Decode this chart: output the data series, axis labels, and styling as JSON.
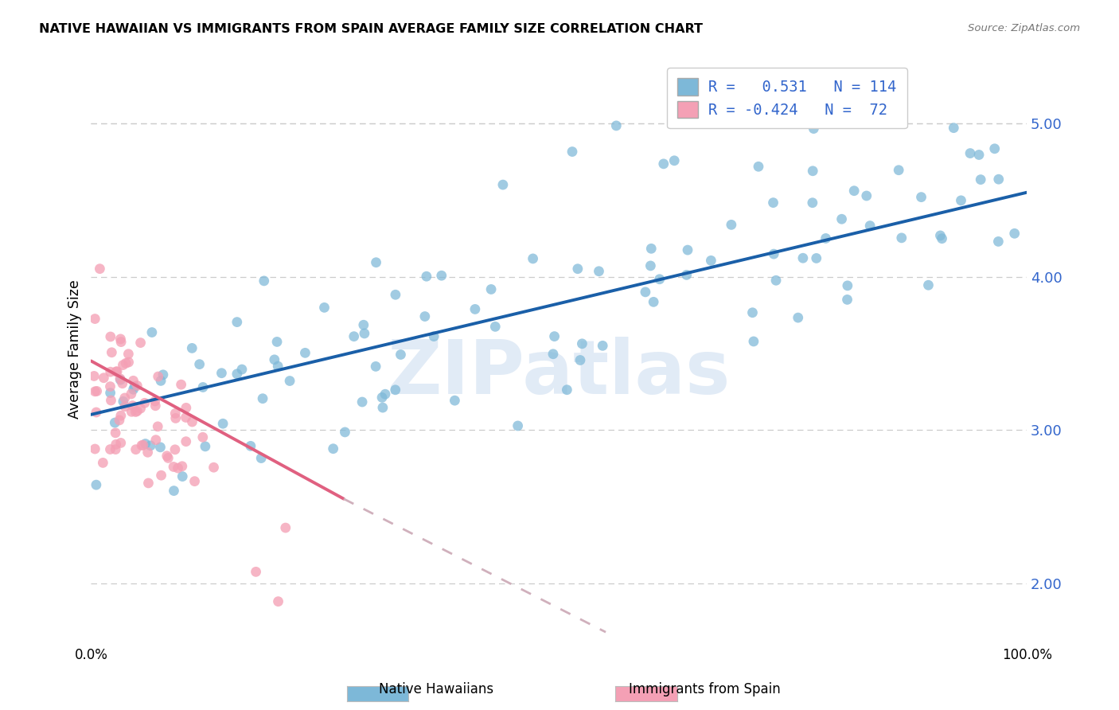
{
  "title": "NATIVE HAWAIIAN VS IMMIGRANTS FROM SPAIN AVERAGE FAMILY SIZE CORRELATION CHART",
  "source": "Source: ZipAtlas.com",
  "ylabel": "Average Family Size",
  "yticks": [
    2.0,
    3.0,
    4.0,
    5.0
  ],
  "xlim": [
    0.0,
    1.0
  ],
  "ylim": [
    1.6,
    5.45
  ],
  "blue_R": 0.531,
  "blue_N": 114,
  "pink_R": -0.424,
  "pink_N": 72,
  "blue_color": "#7db8d8",
  "pink_color": "#f4a0b5",
  "blue_line_color": "#1a5fa8",
  "pink_line_color": "#e06080",
  "pink_line_dashed_color": "#d0b0bc",
  "watermark": "ZIPatlas",
  "legend_label_blue": "Native Hawaiians",
  "legend_label_pink": "Immigrants from Spain",
  "blue_seed": 42,
  "pink_seed": 7,
  "blue_trend": [
    0.0,
    3.1,
    1.0,
    4.55
  ],
  "pink_trend_solid": [
    0.0,
    3.45,
    0.27,
    2.55
  ],
  "pink_trend_dashed": [
    0.27,
    2.55,
    0.55,
    1.68
  ]
}
